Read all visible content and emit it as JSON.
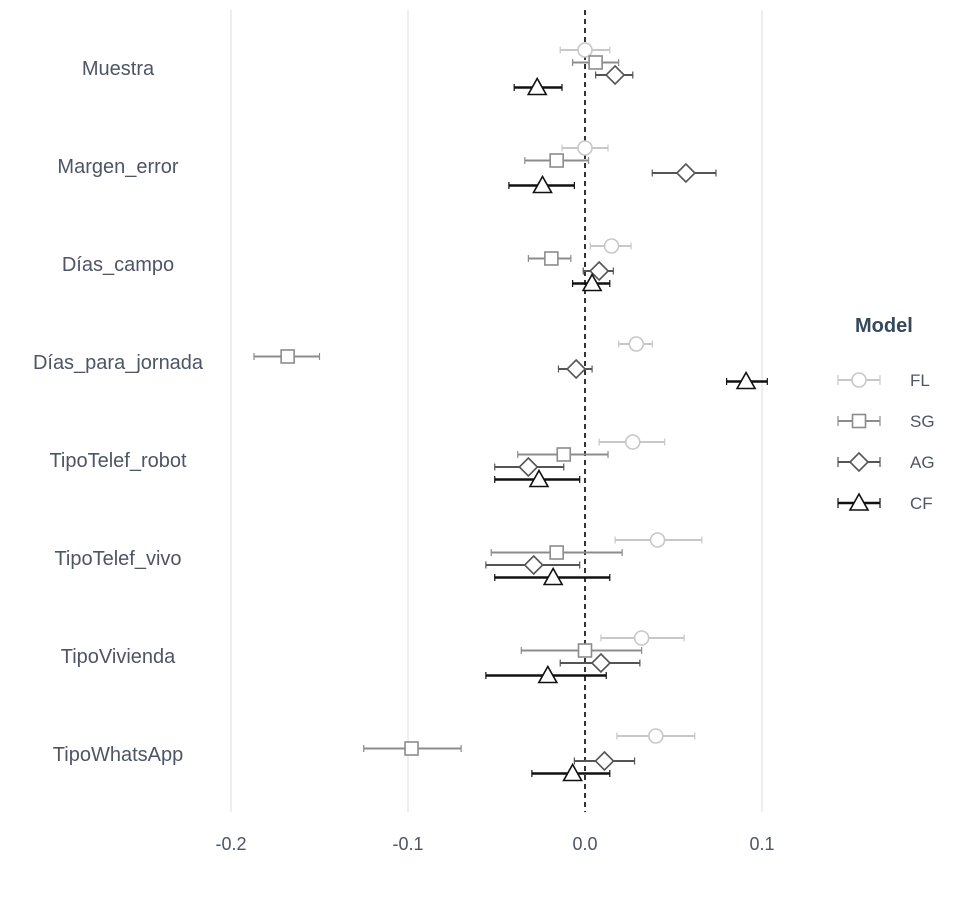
{
  "chart_data": {
    "type": "forest",
    "xlim": [
      -0.3,
      0.22
    ],
    "xticks": [
      -0.2,
      -0.1,
      0.0,
      0.1
    ],
    "xtick_labels": [
      "-0.2",
      "-0.1",
      "0.0",
      "0.1"
    ],
    "reference_line": 0.0,
    "grid": true,
    "legend_position": "right",
    "legend_title": "Model",
    "categories": [
      "Muestra",
      "Margen_error",
      "Días_campo",
      "Días_para_jornada",
      "TipoTelef_robot",
      "TipoTelef_vivo",
      "TipoVivienda",
      "TipoWhatsApp"
    ],
    "series": [
      {
        "name": "FL",
        "marker": "circle",
        "color": "#c8c8c8",
        "estimates": [
          0.0,
          0.0,
          0.015,
          0.029,
          0.027,
          0.041,
          0.032,
          0.04
        ],
        "lower": [
          -0.014,
          -0.013,
          0.003,
          0.019,
          0.008,
          0.017,
          0.009,
          0.018
        ],
        "upper": [
          0.014,
          0.013,
          0.026,
          0.038,
          0.045,
          0.066,
          0.056,
          0.062
        ]
      },
      {
        "name": "SG",
        "marker": "square",
        "color": "#8c8c8c",
        "estimates": [
          0.006,
          -0.016,
          -0.019,
          -0.168,
          -0.012,
          -0.016,
          0.0,
          -0.098
        ],
        "lower": [
          -0.007,
          -0.034,
          -0.032,
          -0.187,
          -0.038,
          -0.053,
          -0.036,
          -0.125
        ],
        "upper": [
          0.019,
          0.002,
          -0.008,
          -0.15,
          0.013,
          0.021,
          0.032,
          -0.07
        ]
      },
      {
        "name": "AG",
        "marker": "diamond",
        "color": "#555555",
        "estimates": [
          0.017,
          0.057,
          0.008,
          -0.005,
          -0.032,
          -0.029,
          0.009,
          0.011
        ],
        "lower": [
          0.006,
          0.038,
          -0.001,
          -0.015,
          -0.051,
          -0.056,
          -0.014,
          -0.006
        ],
        "upper": [
          0.027,
          0.074,
          0.016,
          0.004,
          -0.012,
          -0.003,
          0.031,
          0.028
        ]
      },
      {
        "name": "CF",
        "marker": "triangle",
        "color": "#111111",
        "estimates": [
          -0.027,
          -0.024,
          0.004,
          0.091,
          -0.026,
          -0.018,
          -0.021,
          -0.007
        ],
        "lower": [
          -0.04,
          -0.043,
          -0.007,
          0.08,
          -0.051,
          -0.051,
          -0.056,
          -0.03
        ],
        "upper": [
          -0.013,
          -0.006,
          0.014,
          0.103,
          -0.003,
          0.014,
          0.012,
          0.014
        ]
      }
    ]
  }
}
